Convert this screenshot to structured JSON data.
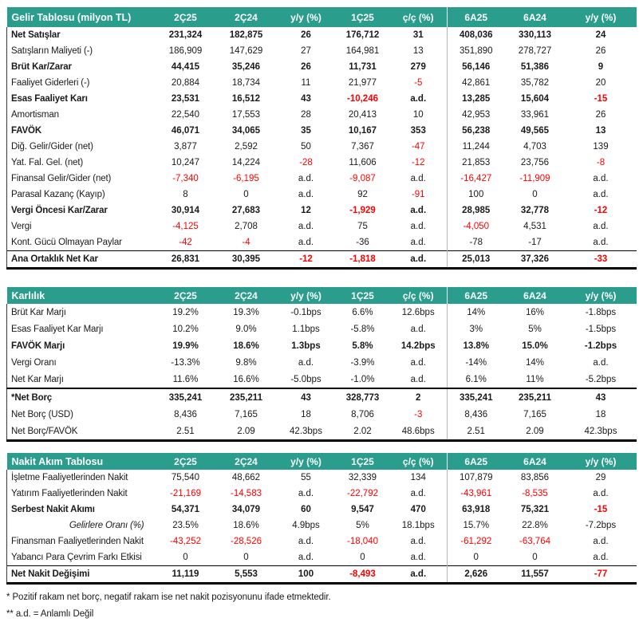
{
  "colors": {
    "header_bg": "#2A9D8C",
    "header_text": "#FFFFFF",
    "negative_value": "#FF0000",
    "body_text": "#1A1A1A",
    "group_divider": "#B5B5B5",
    "section_border": "#000000"
  },
  "tables": [
    {
      "id": "income-statement",
      "title": "Gelir Tablosu (milyon TL)",
      "columns": [
        "2Ç25",
        "2Ç24",
        "y/y (%)",
        "1Ç25",
        "ç/ç (%)",
        "6A25",
        "6A24",
        "y/y (%)"
      ],
      "rows": [
        {
          "label": "Net Satışlar",
          "bold": true,
          "cells": [
            {
              "v": "231,324"
            },
            {
              "v": "182,875"
            },
            {
              "v": "26"
            },
            {
              "v": "176,712"
            },
            {
              "v": "31"
            },
            {
              "v": "408,036"
            },
            {
              "v": "330,113"
            },
            {
              "v": "24"
            }
          ]
        },
        {
          "label": "Satışların Maliyeti (-)",
          "cells": [
            {
              "v": "186,909"
            },
            {
              "v": "147,629"
            },
            {
              "v": "27"
            },
            {
              "v": "164,981"
            },
            {
              "v": "13"
            },
            {
              "v": "351,890"
            },
            {
              "v": "278,727"
            },
            {
              "v": "26"
            }
          ]
        },
        {
          "label": "Brüt Kar/Zarar",
          "bold": true,
          "cells": [
            {
              "v": "44,415"
            },
            {
              "v": "35,246"
            },
            {
              "v": "26"
            },
            {
              "v": "11,731"
            },
            {
              "v": "279"
            },
            {
              "v": "56,146"
            },
            {
              "v": "51,386"
            },
            {
              "v": "9"
            }
          ]
        },
        {
          "label": "Faaliyet Giderleri (-)",
          "cells": [
            {
              "v": "20,884"
            },
            {
              "v": "18,734"
            },
            {
              "v": "11"
            },
            {
              "v": "21,977"
            },
            {
              "v": "-5",
              "red": true
            },
            {
              "v": "42,861"
            },
            {
              "v": "35,782"
            },
            {
              "v": "20"
            }
          ]
        },
        {
          "label": "Esas Faaliyet Karı",
          "bold": true,
          "cells": [
            {
              "v": "23,531"
            },
            {
              "v": "16,512"
            },
            {
              "v": "43"
            },
            {
              "v": "-10,246",
              "red": true
            },
            {
              "v": "a.d."
            },
            {
              "v": "13,285"
            },
            {
              "v": "15,604"
            },
            {
              "v": "-15",
              "red": true
            }
          ]
        },
        {
          "label": "Amortisman",
          "cells": [
            {
              "v": "22,540"
            },
            {
              "v": "17,553"
            },
            {
              "v": "28"
            },
            {
              "v": "20,413"
            },
            {
              "v": "10"
            },
            {
              "v": "42,953"
            },
            {
              "v": "33,961"
            },
            {
              "v": "26"
            }
          ]
        },
        {
          "label": "FAVÖK",
          "bold": true,
          "cells": [
            {
              "v": "46,071"
            },
            {
              "v": "34,065"
            },
            {
              "v": "35"
            },
            {
              "v": "10,167"
            },
            {
              "v": "353"
            },
            {
              "v": "56,238"
            },
            {
              "v": "49,565"
            },
            {
              "v": "13"
            }
          ]
        },
        {
          "label": "Diğ. Gelir/Gider (net)",
          "cells": [
            {
              "v": "3,877"
            },
            {
              "v": "2,592"
            },
            {
              "v": "50"
            },
            {
              "v": "7,367"
            },
            {
              "v": "-47",
              "red": true
            },
            {
              "v": "11,244"
            },
            {
              "v": "4,703"
            },
            {
              "v": "139"
            }
          ]
        },
        {
          "label": "Yat. Fal. Gel. (net)",
          "cells": [
            {
              "v": "10,247"
            },
            {
              "v": "14,224"
            },
            {
              "v": "-28",
              "red": true
            },
            {
              "v": "11,606"
            },
            {
              "v": "-12",
              "red": true
            },
            {
              "v": "21,853"
            },
            {
              "v": "23,756"
            },
            {
              "v": "-8",
              "red": true
            }
          ]
        },
        {
          "label": "Finansal Gelir/Gider (net)",
          "cells": [
            {
              "v": "-7,340",
              "red": true
            },
            {
              "v": "-6,195",
              "red": true
            },
            {
              "v": "a.d."
            },
            {
              "v": "-9,087",
              "red": true
            },
            {
              "v": "a.d."
            },
            {
              "v": "-16,427",
              "red": true
            },
            {
              "v": "-11,909",
              "red": true
            },
            {
              "v": "a.d."
            }
          ]
        },
        {
          "label": "Parasal Kazanç (Kayıp)",
          "cells": [
            {
              "v": "8"
            },
            {
              "v": "0"
            },
            {
              "v": "a.d."
            },
            {
              "v": "92"
            },
            {
              "v": "-91",
              "red": true
            },
            {
              "v": "100"
            },
            {
              "v": "0"
            },
            {
              "v": "a.d."
            }
          ]
        },
        {
          "label": "Vergi Öncesi Kar/Zarar",
          "bold": true,
          "cells": [
            {
              "v": "30,914"
            },
            {
              "v": "27,683"
            },
            {
              "v": "12"
            },
            {
              "v": "-1,929",
              "red": true
            },
            {
              "v": "a.d."
            },
            {
              "v": "28,985"
            },
            {
              "v": "32,778"
            },
            {
              "v": "-12",
              "red": true
            }
          ]
        },
        {
          "label": "Vergi",
          "cells": [
            {
              "v": "-4,125",
              "red": true
            },
            {
              "v": "2,708"
            },
            {
              "v": "a.d."
            },
            {
              "v": "75"
            },
            {
              "v": "a.d."
            },
            {
              "v": "-4,050",
              "red": true
            },
            {
              "v": "4,531"
            },
            {
              "v": "a.d."
            }
          ]
        },
        {
          "label": "Kont. Gücü Olmayan Paylar",
          "cells": [
            {
              "v": "-42",
              "red": true
            },
            {
              "v": "-4",
              "red": true
            },
            {
              "v": "a.d."
            },
            {
              "v": "-36"
            },
            {
              "v": "a.d."
            },
            {
              "v": "-78"
            },
            {
              "v": "-17"
            },
            {
              "v": "a.d."
            }
          ]
        },
        {
          "label": "Ana Ortaklık Net Kar",
          "bold": true,
          "border": "thin",
          "cells": [
            {
              "v": "26,831"
            },
            {
              "v": "30,395"
            },
            {
              "v": "-12",
              "red": true
            },
            {
              "v": "-1,818",
              "red": true
            },
            {
              "v": "a.d."
            },
            {
              "v": "25,013"
            },
            {
              "v": "37,326"
            },
            {
              "v": "-33",
              "red": true
            }
          ]
        }
      ]
    },
    {
      "id": "profitability",
      "title": "Karlılık",
      "columns": [
        "2Ç25",
        "2Ç24",
        "y/y (%)",
        "1Ç25",
        "ç/ç (%)",
        "6A25",
        "6A24",
        "y/y (%)"
      ],
      "rows": [
        {
          "label": "Brüt Kar Marjı",
          "cells": [
            {
              "v": "19.2%"
            },
            {
              "v": "19.3%"
            },
            {
              "v": "-0.1bps"
            },
            {
              "v": "6.6%"
            },
            {
              "v": "12.6bps"
            },
            {
              "v": "14%"
            },
            {
              "v": "16%"
            },
            {
              "v": "-1.8bps"
            }
          ]
        },
        {
          "label": "Esas Faaliyet Kar Marjı",
          "cells": [
            {
              "v": "10.2%"
            },
            {
              "v": "9.0%"
            },
            {
              "v": "1.1bps"
            },
            {
              "v": "-5.8%"
            },
            {
              "v": "a.d."
            },
            {
              "v": "3%"
            },
            {
              "v": "5%"
            },
            {
              "v": "-1.5bps"
            }
          ]
        },
        {
          "label": "FAVÖK Marjı",
          "bold": true,
          "cells": [
            {
              "v": "19.9%"
            },
            {
              "v": "18.6%"
            },
            {
              "v": "1.3bps"
            },
            {
              "v": "5.8%"
            },
            {
              "v": "14.2bps"
            },
            {
              "v": "13.8%"
            },
            {
              "v": "15.0%"
            },
            {
              "v": "-1.2bps"
            }
          ]
        },
        {
          "label": "Vergi Oranı",
          "cells": [
            {
              "v": "-13.3%"
            },
            {
              "v": "9.8%"
            },
            {
              "v": "a.d."
            },
            {
              "v": "-3.9%"
            },
            {
              "v": "a.d."
            },
            {
              "v": "-14%"
            },
            {
              "v": "14%"
            },
            {
              "v": "a.d."
            }
          ]
        },
        {
          "label": "Net Kar Marjı",
          "cells": [
            {
              "v": "11.6%"
            },
            {
              "v": "16.6%"
            },
            {
              "v": "-5.0bps"
            },
            {
              "v": "-1.0%"
            },
            {
              "v": "a.d."
            },
            {
              "v": "6.1%"
            },
            {
              "v": "11%"
            },
            {
              "v": "-5.2bps"
            }
          ]
        },
        {
          "label": "*Net Borç",
          "bold": true,
          "border": "thick",
          "cells": [
            {
              "v": "335,241"
            },
            {
              "v": "235,211"
            },
            {
              "v": "43"
            },
            {
              "v": "328,773"
            },
            {
              "v": "2"
            },
            {
              "v": "335,241"
            },
            {
              "v": "235,211"
            },
            {
              "v": "43"
            }
          ]
        },
        {
          "label": "Net Borç (USD)",
          "cells": [
            {
              "v": "8,436"
            },
            {
              "v": "7,165"
            },
            {
              "v": "18"
            },
            {
              "v": "8,706"
            },
            {
              "v": "-3",
              "red": true
            },
            {
              "v": "8,436"
            },
            {
              "v": "7,165"
            },
            {
              "v": "18"
            }
          ]
        },
        {
          "label": "Net Borç/FAVÖK",
          "cells": [
            {
              "v": "2.51"
            },
            {
              "v": "2.09"
            },
            {
              "v": "42.3bps"
            },
            {
              "v": "2.02"
            },
            {
              "v": "48.6bps"
            },
            {
              "v": "2.51"
            },
            {
              "v": "2.09"
            },
            {
              "v": "42.3bps"
            }
          ]
        }
      ]
    },
    {
      "id": "cash-flow",
      "title": "Nakit Akım Tablosu",
      "columns": [
        "2Ç25",
        "2Ç24",
        "y/y (%)",
        "1Ç25",
        "ç/ç (%)",
        "6A25",
        "6A24",
        "y/y (%)"
      ],
      "rows": [
        {
          "label": "İşletme Faaliyetlerinden Nakit",
          "cells": [
            {
              "v": "75,540"
            },
            {
              "v": "48,662"
            },
            {
              "v": "55"
            },
            {
              "v": "32,339"
            },
            {
              "v": "134"
            },
            {
              "v": "107,879"
            },
            {
              "v": "83,856"
            },
            {
              "v": "29"
            }
          ]
        },
        {
          "label": "Yatırım Faaliyetlerinden Nakit",
          "cells": [
            {
              "v": "-21,169",
              "red": true
            },
            {
              "v": "-14,583",
              "red": true
            },
            {
              "v": "a.d."
            },
            {
              "v": "-22,792",
              "red": true
            },
            {
              "v": "a.d."
            },
            {
              "v": "-43,961",
              "red": true
            },
            {
              "v": "-8,535",
              "red": true
            },
            {
              "v": "a.d."
            }
          ]
        },
        {
          "label": "Serbest Nakit Akımı",
          "bold": true,
          "cells": [
            {
              "v": "54,371"
            },
            {
              "v": "34,079"
            },
            {
              "v": "60"
            },
            {
              "v": "9,547"
            },
            {
              "v": "470"
            },
            {
              "v": "63,918"
            },
            {
              "v": "75,321"
            },
            {
              "v": "-15",
              "red": true
            }
          ]
        },
        {
          "label": "Gelirlere Oranı (%)",
          "italic": true,
          "cells": [
            {
              "v": "23.5%"
            },
            {
              "v": "18.6%"
            },
            {
              "v": "4.9bps"
            },
            {
              "v": "5%"
            },
            {
              "v": "18.1bps"
            },
            {
              "v": "15.7%"
            },
            {
              "v": "22.8%"
            },
            {
              "v": "-7.2bps"
            }
          ]
        },
        {
          "label": "Finansman Faaliyetlerinden Nakit",
          "cells": [
            {
              "v": "-43,252",
              "red": true
            },
            {
              "v": "-28,526",
              "red": true
            },
            {
              "v": "a.d."
            },
            {
              "v": "-18,040",
              "red": true
            },
            {
              "v": "a.d."
            },
            {
              "v": "-61,292",
              "red": true
            },
            {
              "v": "-63,764",
              "red": true
            },
            {
              "v": "a.d."
            }
          ]
        },
        {
          "label": "Yabancı Para Çevrim Farkı Etkisi",
          "cells": [
            {
              "v": "0"
            },
            {
              "v": "0"
            },
            {
              "v": "a.d."
            },
            {
              "v": "0"
            },
            {
              "v": "a.d."
            },
            {
              "v": "0"
            },
            {
              "v": "0"
            },
            {
              "v": "a.d."
            }
          ]
        },
        {
          "label": "Net Nakit Değişimi",
          "bold": true,
          "border": "thin",
          "cells": [
            {
              "v": "11,119"
            },
            {
              "v": "5,553"
            },
            {
              "v": "100"
            },
            {
              "v": "-8,493",
              "red": true
            },
            {
              "v": "a.d."
            },
            {
              "v": "2,626"
            },
            {
              "v": "11,557"
            },
            {
              "v": "-77",
              "red": true
            }
          ]
        }
      ]
    }
  ],
  "footnotes": [
    "* Pozitif rakam net borç, negatif rakam ise net nakit pozisyonunu ifade etmektedir.",
    "** a.d. = Anlamlı Değil"
  ]
}
